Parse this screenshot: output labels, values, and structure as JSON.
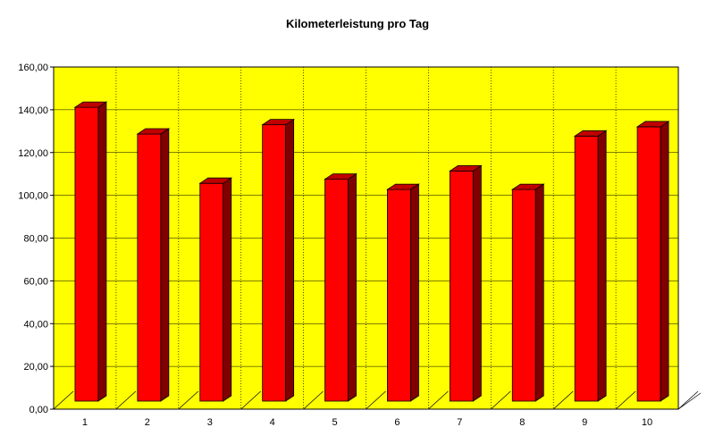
{
  "chart_data": {
    "type": "bar",
    "title": "Kilometerleistung pro Tag",
    "xlabel": "",
    "ylabel": "",
    "categories": [
      "1",
      "2",
      "3",
      "4",
      "5",
      "6",
      "7",
      "8",
      "9",
      "10"
    ],
    "values": [
      143,
      130,
      106,
      134.5,
      108,
      103,
      112,
      103,
      129,
      133.5
    ],
    "ylim": [
      0,
      160
    ],
    "yticks": [
      "0,00",
      "20,00",
      "40,00",
      "60,00",
      "80,00",
      "100,00",
      "120,00",
      "140,00",
      "160,00"
    ],
    "grid": true,
    "style": "3d-column",
    "colors": {
      "plot_background": "#ffff00",
      "bar_front": "#ff0000",
      "bar_side": "#800000",
      "bar_top": "#c00000",
      "grid": "#000000"
    }
  }
}
